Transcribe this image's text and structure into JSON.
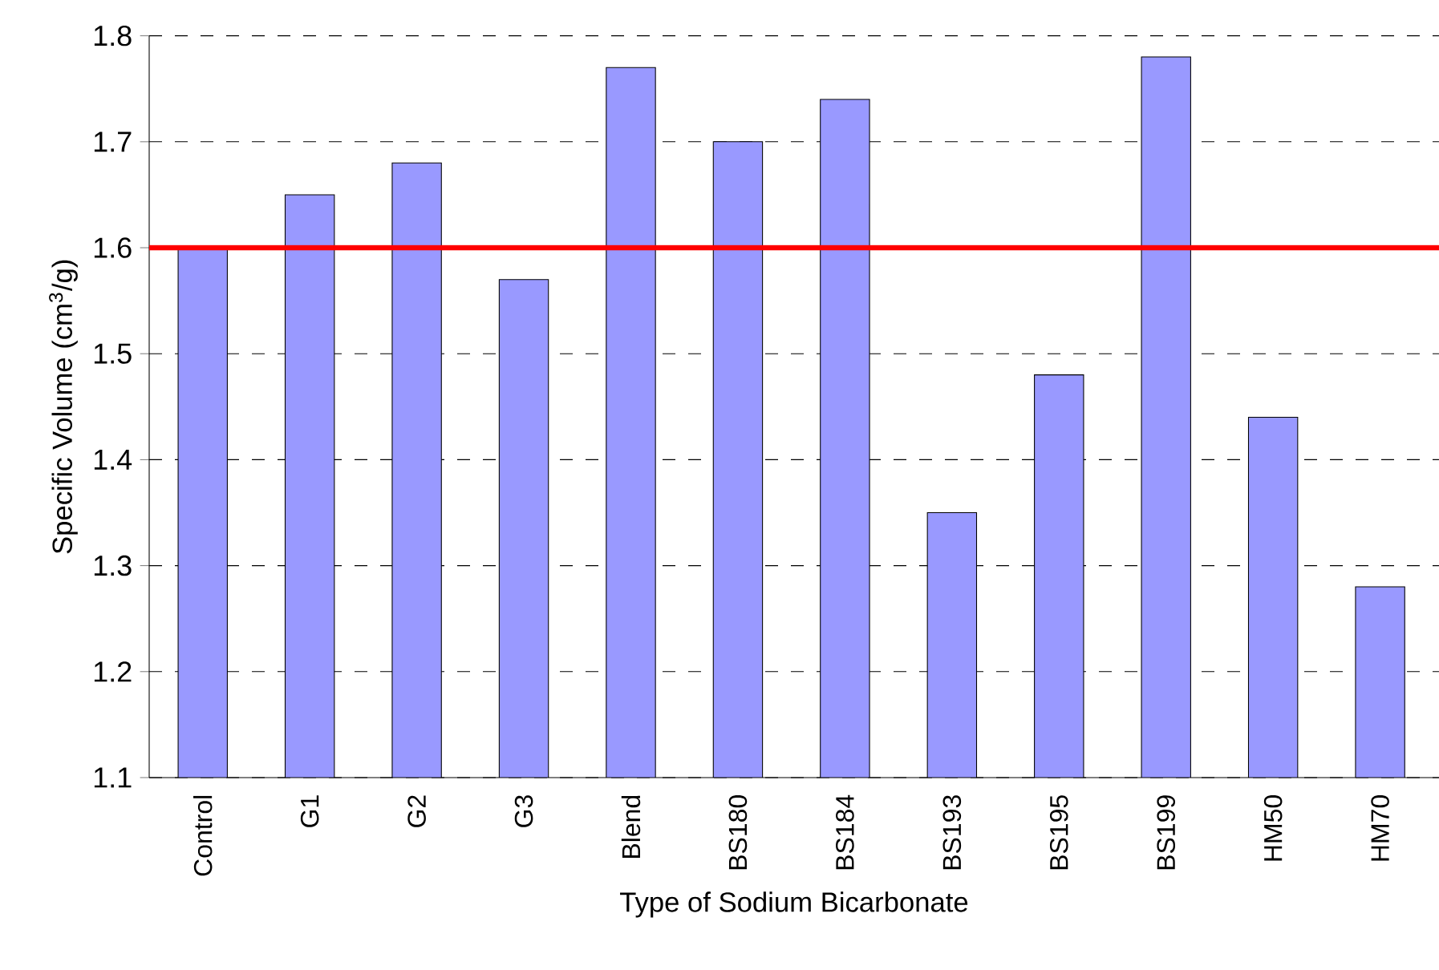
{
  "chart_data": {
    "type": "bar",
    "xlabel": "Type of Sodium Bicarbonate",
    "ylabel": "Specific Volume (cm$^{3}$/g)",
    "categories": [
      "Control",
      "G1",
      "G2",
      "G3",
      "Blend",
      "BS180",
      "BS184",
      "BS193",
      "BS195",
      "BS199",
      "HM50",
      "HM70"
    ],
    "values": [
      1.6,
      1.65,
      1.68,
      1.57,
      1.77,
      1.7,
      1.74,
      1.35,
      1.48,
      1.78,
      1.44,
      1.28
    ],
    "color": "#9999ff",
    "ylim": [
      1.1,
      1.8
    ],
    "yticks": [
      1.1,
      1.2,
      1.3,
      1.4,
      1.5,
      1.6,
      1.7,
      1.8
    ],
    "grid": "y",
    "ref_lines": [
      {
        "axis": "y",
        "value": 1.6,
        "color": "#ff0000",
        "line_style": "solid"
      }
    ]
  }
}
